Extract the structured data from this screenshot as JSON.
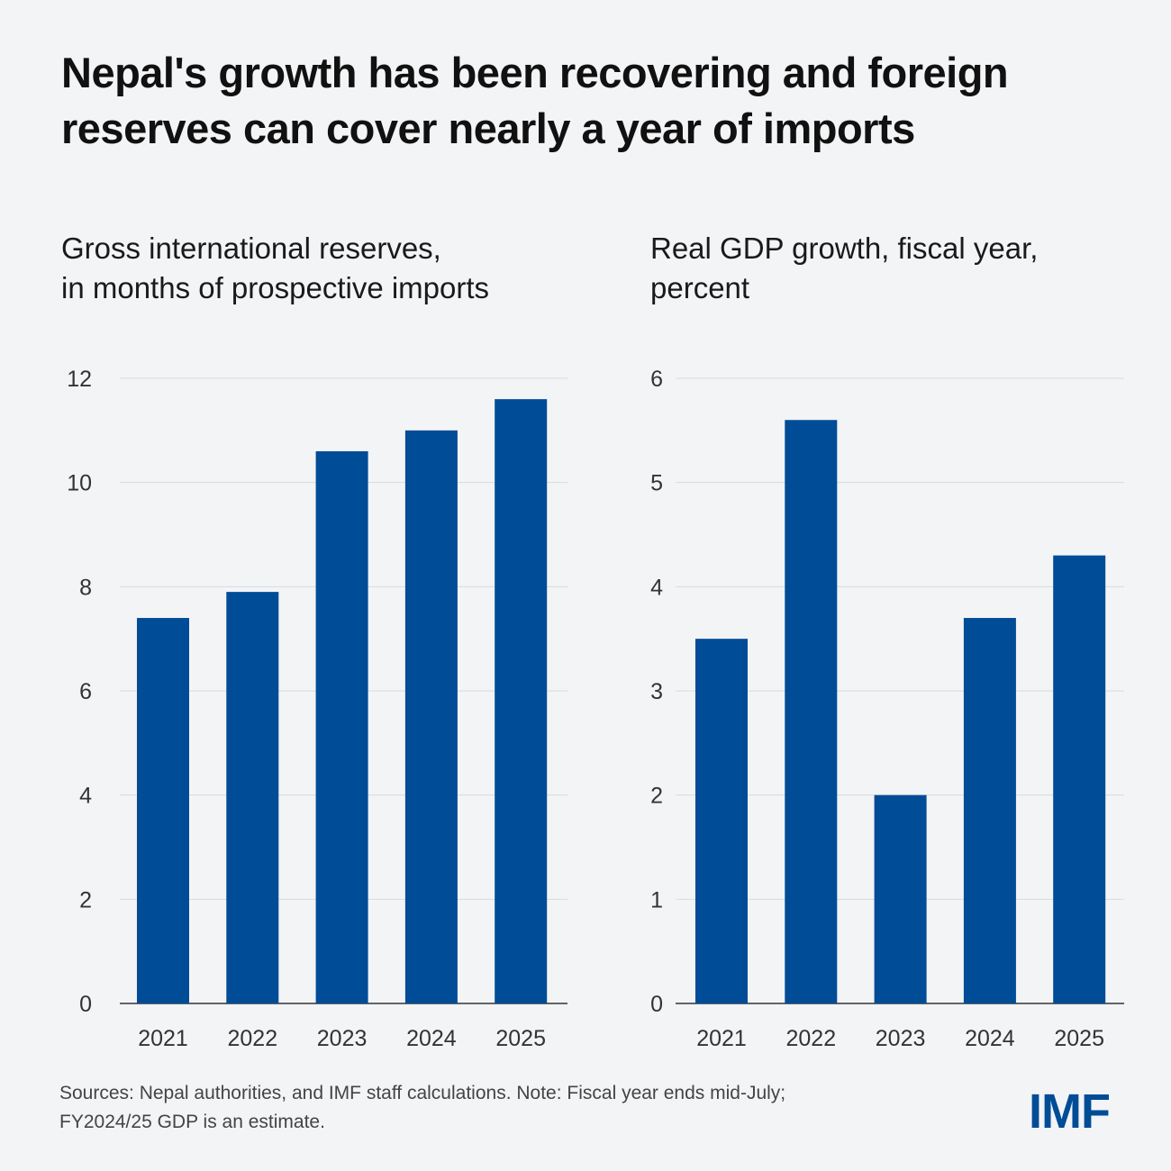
{
  "title": "Nepal's growth has been recovering and foreign reserves can cover nearly a year of imports",
  "footer": {
    "line1": "Sources: Nepal authorities, and IMF staff calculations.  Note: Fiscal year ends mid-July;",
    "line2": "FY2024/25 GDP is an estimate."
  },
  "logo": "IMF",
  "colors": {
    "bar": "#004C97",
    "background": "#F3F4F6",
    "grid": "#D9DADD"
  },
  "chart_data": [
    {
      "type": "bar",
      "title": "Gross international reserves, in months of prospective imports",
      "title_lines": [
        "Gross international reserves,",
        "in months of prospective imports"
      ],
      "categories": [
        "2021",
        "2022",
        "2023",
        "2024",
        "2025"
      ],
      "values": [
        7.4,
        7.9,
        10.6,
        11.0,
        11.6
      ],
      "ylim": [
        0,
        12
      ],
      "yticks": [
        0,
        2,
        4,
        6,
        8,
        10,
        12
      ],
      "grid": true
    },
    {
      "type": "bar",
      "title": "Real GDP growth, fiscal year, percent",
      "title_lines": [
        "Real GDP growth, fiscal year,",
        "percent"
      ],
      "categories": [
        "2021",
        "2022",
        "2023",
        "2024",
        "2025"
      ],
      "values": [
        3.5,
        5.6,
        2.0,
        3.7,
        4.3
      ],
      "ylim": [
        0,
        6
      ],
      "yticks": [
        0,
        1,
        2,
        3,
        4,
        5,
        6
      ],
      "grid": true
    }
  ]
}
